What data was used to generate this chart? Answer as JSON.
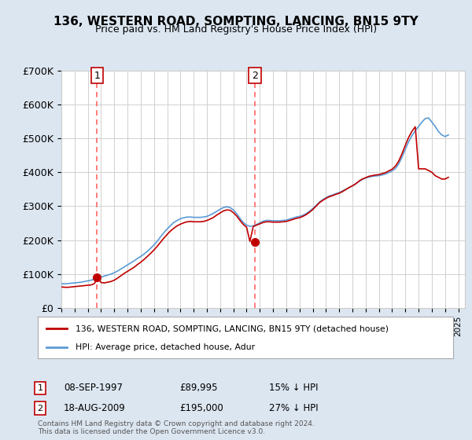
{
  "title": "136, WESTERN ROAD, SOMPTING, LANCING, BN15 9TY",
  "subtitle": "Price paid vs. HM Land Registry's House Price Index (HPI)",
  "legend_line1": "136, WESTERN ROAD, SOMPTING, LANCING, BN15 9TY (detached house)",
  "legend_line2": "HPI: Average price, detached house, Adur",
  "annotation1_label": "1",
  "annotation1_date": "08-SEP-1997",
  "annotation1_price": "£89,995",
  "annotation1_hpi": "15% ↓ HPI",
  "annotation1_year": 1997.69,
  "annotation1_value": 89995,
  "annotation2_label": "2",
  "annotation2_date": "18-AUG-2009",
  "annotation2_price": "£195,000",
  "annotation2_hpi": "27% ↓ HPI",
  "annotation2_year": 2009.63,
  "annotation2_value": 195000,
  "footer": "Contains HM Land Registry data © Crown copyright and database right 2024.\nThis data is licensed under the Open Government Licence v3.0.",
  "hpi_color": "#5b9bd5",
  "price_color": "#c00000",
  "dashed_color": "#ff6666",
  "background_color": "#dce6f1",
  "plot_bg_color": "#ffffff",
  "ylim": [
    0,
    700000
  ],
  "xlim_start": 1995.0,
  "xlim_end": 2025.5,
  "yticks": [
    0,
    100000,
    200000,
    300000,
    400000,
    500000,
    600000,
    700000
  ],
  "ytick_labels": [
    "£0",
    "£100K",
    "£200K",
    "£300K",
    "£400K",
    "£500K",
    "£600K",
    "£700K"
  ],
  "hpi_data_years": [
    1995.0,
    1995.25,
    1995.5,
    1995.75,
    1996.0,
    1996.25,
    1996.5,
    1996.75,
    1997.0,
    1997.25,
    1997.5,
    1997.75,
    1998.0,
    1998.25,
    1998.5,
    1998.75,
    1999.0,
    1999.25,
    1999.5,
    1999.75,
    2000.0,
    2000.25,
    2000.5,
    2000.75,
    2001.0,
    2001.25,
    2001.5,
    2001.75,
    2002.0,
    2002.25,
    2002.5,
    2002.75,
    2003.0,
    2003.25,
    2003.5,
    2003.75,
    2004.0,
    2004.25,
    2004.5,
    2004.75,
    2005.0,
    2005.25,
    2005.5,
    2005.75,
    2006.0,
    2006.25,
    2006.5,
    2006.75,
    2007.0,
    2007.25,
    2007.5,
    2007.75,
    2008.0,
    2008.25,
    2008.5,
    2008.75,
    2009.0,
    2009.25,
    2009.5,
    2009.75,
    2010.0,
    2010.25,
    2010.5,
    2010.75,
    2011.0,
    2011.25,
    2011.5,
    2011.75,
    2012.0,
    2012.25,
    2012.5,
    2012.75,
    2013.0,
    2013.25,
    2013.5,
    2013.75,
    2014.0,
    2014.25,
    2014.5,
    2014.75,
    2015.0,
    2015.25,
    2015.5,
    2015.75,
    2016.0,
    2016.25,
    2016.5,
    2016.75,
    2017.0,
    2017.25,
    2017.5,
    2017.75,
    2018.0,
    2018.25,
    2018.5,
    2018.75,
    2019.0,
    2019.25,
    2019.5,
    2019.75,
    2020.0,
    2020.25,
    2020.5,
    2020.75,
    2021.0,
    2021.25,
    2021.5,
    2021.75,
    2022.0,
    2022.25,
    2022.5,
    2022.75,
    2023.0,
    2023.25,
    2023.5,
    2023.75,
    2024.0,
    2024.25
  ],
  "hpi_data_values": [
    72000,
    71000,
    72000,
    73000,
    74000,
    75000,
    76000,
    78000,
    80000,
    82000,
    85000,
    88000,
    91000,
    94000,
    97000,
    100000,
    104000,
    109000,
    115000,
    121000,
    127000,
    133000,
    139000,
    146000,
    152000,
    159000,
    167000,
    176000,
    186000,
    197000,
    210000,
    222000,
    233000,
    243000,
    252000,
    258000,
    263000,
    266000,
    268000,
    268000,
    267000,
    267000,
    267000,
    268000,
    270000,
    274000,
    279000,
    285000,
    291000,
    296000,
    298000,
    296000,
    289000,
    278000,
    264000,
    252000,
    244000,
    241000,
    242000,
    246000,
    251000,
    256000,
    258000,
    258000,
    257000,
    257000,
    257000,
    258000,
    259000,
    262000,
    265000,
    268000,
    270000,
    273000,
    278000,
    285000,
    293000,
    302000,
    312000,
    319000,
    325000,
    330000,
    333000,
    337000,
    340000,
    345000,
    350000,
    355000,
    360000,
    366000,
    373000,
    379000,
    383000,
    386000,
    388000,
    389000,
    390000,
    392000,
    395000,
    399000,
    404000,
    411000,
    425000,
    445000,
    468000,
    490000,
    508000,
    522000,
    535000,
    548000,
    558000,
    560000,
    548000,
    535000,
    520000,
    510000,
    505000,
    510000
  ],
  "price_data_years": [
    1995.0,
    1995.25,
    1995.5,
    1995.75,
    1996.0,
    1996.25,
    1996.5,
    1996.75,
    1997.0,
    1997.25,
    1997.5,
    1997.75,
    1998.0,
    1998.25,
    1998.5,
    1998.75,
    1999.0,
    1999.25,
    1999.5,
    1999.75,
    2000.0,
    2000.25,
    2000.5,
    2000.75,
    2001.0,
    2001.25,
    2001.5,
    2001.75,
    2002.0,
    2002.25,
    2002.5,
    2002.75,
    2003.0,
    2003.25,
    2003.5,
    2003.75,
    2004.0,
    2004.25,
    2004.5,
    2004.75,
    2005.0,
    2005.25,
    2005.5,
    2005.75,
    2006.0,
    2006.25,
    2006.5,
    2006.75,
    2007.0,
    2007.25,
    2007.5,
    2007.75,
    2008.0,
    2008.25,
    2008.5,
    2008.75,
    2009.0,
    2009.25,
    2009.5,
    2009.75,
    2010.0,
    2010.25,
    2010.5,
    2010.75,
    2011.0,
    2011.25,
    2011.5,
    2011.75,
    2012.0,
    2012.25,
    2012.5,
    2012.75,
    2013.0,
    2013.25,
    2013.5,
    2013.75,
    2014.0,
    2014.25,
    2014.5,
    2014.75,
    2015.0,
    2015.25,
    2015.5,
    2015.75,
    2016.0,
    2016.25,
    2016.5,
    2016.75,
    2017.0,
    2017.25,
    2017.5,
    2017.75,
    2018.0,
    2018.25,
    2018.5,
    2018.75,
    2019.0,
    2019.25,
    2019.5,
    2019.75,
    2020.0,
    2020.25,
    2020.5,
    2020.75,
    2021.0,
    2021.25,
    2021.5,
    2021.75,
    2022.0,
    2022.25,
    2022.5,
    2022.75,
    2023.0,
    2023.25,
    2023.5,
    2023.75,
    2024.0,
    2024.25
  ],
  "price_data_values": [
    62000,
    61000,
    61000,
    62000,
    63000,
    64000,
    65000,
    66000,
    67000,
    68000,
    72000,
    90000,
    75000,
    74000,
    76000,
    78000,
    82000,
    88000,
    95000,
    102000,
    108000,
    114000,
    120000,
    128000,
    135000,
    143000,
    152000,
    161000,
    171000,
    182000,
    194000,
    206000,
    217000,
    227000,
    235000,
    242000,
    247000,
    251000,
    254000,
    255000,
    254000,
    254000,
    254000,
    255000,
    258000,
    262000,
    267000,
    274000,
    280000,
    286000,
    289000,
    288000,
    281000,
    271000,
    258000,
    246000,
    238000,
    196000,
    240000,
    244000,
    248000,
    252000,
    254000,
    254000,
    253000,
    253000,
    253000,
    254000,
    255000,
    258000,
    261000,
    264000,
    266000,
    270000,
    275000,
    282000,
    290000,
    300000,
    310000,
    317000,
    323000,
    328000,
    331000,
    335000,
    338000,
    343000,
    349000,
    355000,
    360000,
    366000,
    374000,
    380000,
    384000,
    388000,
    390000,
    392000,
    393000,
    396000,
    399000,
    404000,
    409000,
    418000,
    433000,
    455000,
    480000,
    503000,
    521000,
    534000,
    410000,
    410000,
    410000,
    405000,
    400000,
    390000,
    385000,
    380000,
    380000,
    385000
  ]
}
